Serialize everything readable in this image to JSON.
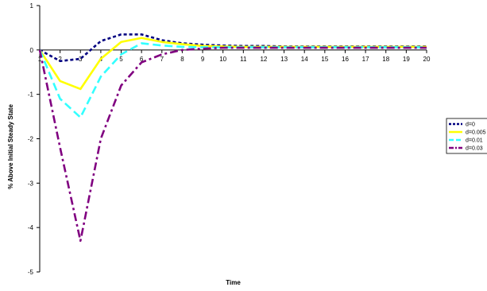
{
  "chart_data": {
    "type": "line",
    "title": "",
    "xlabel": "Time",
    "ylabel": "% Above Initial Steady State",
    "xlim": [
      1,
      20
    ],
    "ylim": [
      -5,
      1
    ],
    "yticks": [
      1,
      0,
      -1,
      -2,
      -3,
      -4,
      -5
    ],
    "xticks": [
      1,
      2,
      3,
      4,
      5,
      6,
      7,
      8,
      9,
      10,
      11,
      12,
      13,
      14,
      15,
      16,
      17,
      18,
      19,
      20
    ],
    "grid": false,
    "legend_position": "right",
    "x": [
      1,
      2,
      3,
      4,
      5,
      6,
      7,
      8,
      9,
      10,
      11,
      12,
      13,
      14,
      15,
      16,
      17,
      18,
      19,
      20
    ],
    "series": [
      {
        "name": "d=0",
        "color": "#000080",
        "style": "dashed-short",
        "values": [
          0.0,
          -0.25,
          -0.2,
          0.2,
          0.35,
          0.35,
          0.22,
          0.15,
          0.12,
          0.1,
          0.09,
          0.09,
          0.08,
          0.08,
          0.08,
          0.08,
          0.08,
          0.08,
          0.08,
          0.08
        ]
      },
      {
        "name": "d=0.005",
        "color": "#ffff00",
        "style": "solid",
        "values": [
          0.0,
          -0.7,
          -0.88,
          -0.2,
          0.18,
          0.27,
          0.18,
          0.13,
          0.09,
          0.08,
          0.07,
          0.07,
          0.07,
          0.07,
          0.07,
          0.07,
          0.07,
          0.07,
          0.07,
          0.07
        ]
      },
      {
        "name": "d=0.01",
        "color": "#33ffff",
        "style": "dashed-long",
        "values": [
          0.0,
          -1.1,
          -1.52,
          -0.6,
          -0.1,
          0.15,
          0.1,
          0.07,
          0.06,
          0.06,
          0.06,
          0.06,
          0.06,
          0.06,
          0.06,
          0.06,
          0.06,
          0.06,
          0.06,
          0.06
        ]
      },
      {
        "name": "d=0.03",
        "color": "#800080",
        "style": "dash-dot",
        "values": [
          0.0,
          -2.2,
          -4.3,
          -2.0,
          -0.8,
          -0.28,
          -0.1,
          0.0,
          0.03,
          0.05,
          0.05,
          0.05,
          0.05,
          0.05,
          0.05,
          0.05,
          0.05,
          0.05,
          0.05,
          0.05
        ]
      }
    ]
  }
}
